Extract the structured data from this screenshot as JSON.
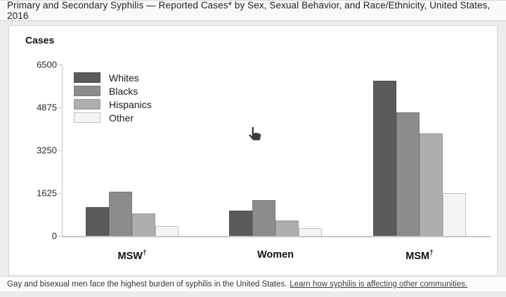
{
  "header": {
    "title": "Primary and Secondary Syphilis — Reported Cases* by Sex, Sexual Behavior, and Race/Ethnicity, United States, 2016"
  },
  "chart_data": {
    "type": "bar",
    "title": "",
    "ylabel": "Cases",
    "xlabel": "",
    "categories": [
      "MSW†",
      "Women",
      "MSM†"
    ],
    "series": [
      {
        "name": "Whites",
        "color": "#5b5b5b",
        "border": "#4d4d4d",
        "values": [
          1080,
          965,
          5900
        ]
      },
      {
        "name": "Blacks",
        "color": "#8c8c8c",
        "border": "#7a7a7a",
        "values": [
          1680,
          1350,
          4700
        ]
      },
      {
        "name": "Hispanics",
        "color": "#aeaeae",
        "border": "#9a9a9a",
        "values": [
          845,
          580,
          3880
        ]
      },
      {
        "name": "Other",
        "color": "#f4f4f4",
        "border": "#c2c2c2",
        "values": [
          370,
          300,
          1625
        ]
      }
    ],
    "ylim": [
      0,
      6500
    ],
    "yticks": [
      0,
      1625,
      3250,
      4875,
      6500
    ],
    "legend_position": "top-left",
    "grid": false
  },
  "icons": {
    "cursor": "hand-pointer-cursor"
  },
  "footer": {
    "text": "Gay and bisexual men face the highest burden of syphilis in the United States.",
    "link": "Learn how syphilis is affecting other communities."
  }
}
